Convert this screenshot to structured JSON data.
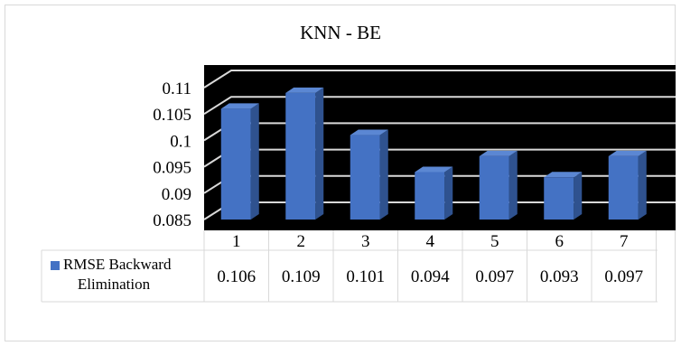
{
  "chart_data": {
    "type": "bar",
    "title": "KNN - BE",
    "categories": [
      "1",
      "2",
      "3",
      "4",
      "5",
      "6",
      "7"
    ],
    "series": [
      {
        "name": "RMSE Backward Elimination",
        "values": [
          0.106,
          0.109,
          0.101,
          0.094,
          0.097,
          0.093,
          0.097
        ],
        "data_labels": [
          "0.106",
          "0.109",
          "0.101",
          "0.094",
          "0.097",
          "0.093",
          "0.097"
        ]
      }
    ],
    "yticks": [
      "0.085",
      "0.09",
      "0.095",
      "0.1",
      "0.105",
      "0.11"
    ],
    "ylim": [
      0.085,
      0.11
    ],
    "grid": true,
    "data_table": true,
    "three_d": true,
    "colors": {
      "bar_front": "#4472c4",
      "bar_side": "#2f528f",
      "bar_top": "#5b87d3",
      "plot_background": "#000000",
      "gridline": "#d9d9d9",
      "table_border": "#d9d9d9"
    }
  }
}
